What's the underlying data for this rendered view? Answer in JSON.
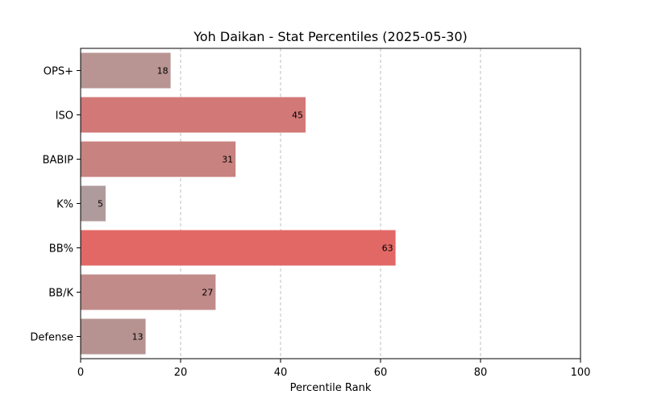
{
  "chart_data": {
    "type": "bar",
    "orientation": "horizontal",
    "title": "Yoh Daikan - Stat Percentiles (2025-05-30)",
    "xlabel": "Percentile Rank",
    "ylabel": "",
    "xlim": [
      0,
      100
    ],
    "xticks": [
      0,
      20,
      40,
      60,
      80,
      100
    ],
    "grid": "x-dashed",
    "categories": [
      "OPS+",
      "ISO",
      "BABIP",
      "K%",
      "BB%",
      "BB/K",
      "Defense"
    ],
    "values": [
      18,
      45,
      31,
      5,
      63,
      27,
      13
    ],
    "colors": [
      "#b89593",
      "#d27876",
      "#c8827f",
      "#b09b9c",
      "#e26866",
      "#c08b89",
      "#b69391"
    ]
  }
}
